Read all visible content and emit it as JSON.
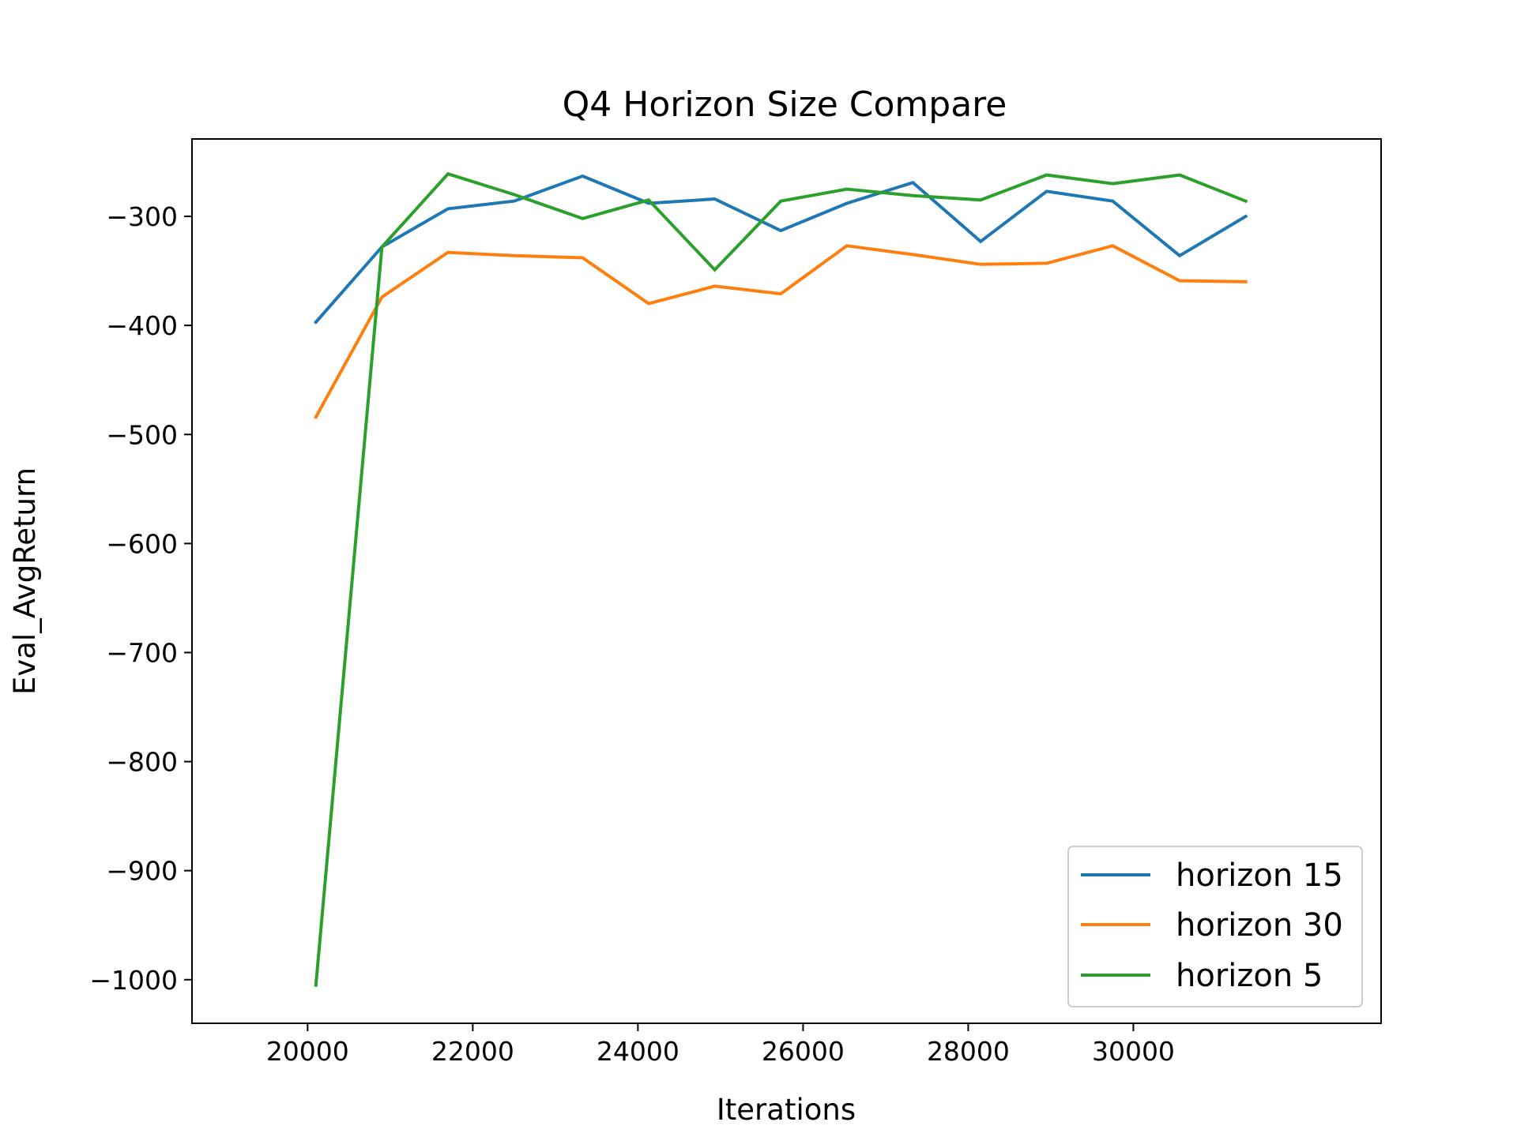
{
  "chart_data": {
    "type": "line",
    "title": "Q4 Horizon Size Compare",
    "xlabel": "Iterations",
    "ylabel": "Eval_AvgReturn",
    "xlim": [
      18600,
      33000
    ],
    "ylim": [
      -1040,
      -229
    ],
    "xticks": [
      20000,
      22000,
      24000,
      26000,
      28000,
      30000
    ],
    "xtick_labels": [
      "20000",
      "22000",
      "24000",
      "26000",
      "28000",
      "30000"
    ],
    "yticks": [
      -300,
      -400,
      -500,
      -600,
      -700,
      -800,
      -900,
      -1000
    ],
    "ytick_labels": [
      "−300",
      "−400",
      "−500",
      "−600",
      "−700",
      "−800",
      "−900",
      "−1000"
    ],
    "grid": false,
    "legend_position": "lower right",
    "x": [
      20100,
      20900,
      21700,
      22500,
      23330,
      24130,
      24930,
      25730,
      26530,
      27330,
      28150,
      28950,
      29750,
      30560,
      31360
    ],
    "series": [
      {
        "name": "horizon 15",
        "color": "#1f77b4",
        "values": [
          -397,
          -328,
          -293,
          -286,
          -263,
          -288,
          -284,
          -313,
          -288,
          -269,
          -323,
          -277,
          -286,
          -336,
          -300
        ]
      },
      {
        "name": "horizon 30",
        "color": "#ff7f0e",
        "values": [
          -484,
          -374,
          -333,
          -336,
          -338,
          -380,
          -364,
          -371,
          -327,
          -335,
          -344,
          -343,
          -327,
          -359,
          -360
        ]
      },
      {
        "name": "horizon 5",
        "color": "#2ca02c",
        "values": [
          -1005,
          -328,
          -261,
          -280,
          -302,
          -285,
          -349,
          -286,
          -275,
          -281,
          -285,
          -262,
          -270,
          -262,
          -286
        ]
      }
    ]
  }
}
